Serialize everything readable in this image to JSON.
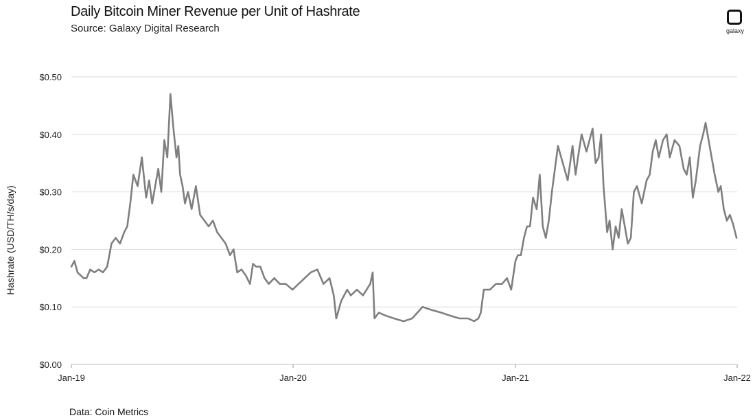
{
  "title": "Daily Bitcoin Miner Revenue per Unit of Hashrate",
  "subtitle": "Source: Galaxy Digital Research",
  "footer": "Data: Coin Metrics",
  "logo_text": "galaxy",
  "colors": {
    "line": "#7f7f7f",
    "grid": "#dcdcdc",
    "axis": "#bdbdbd"
  },
  "chart_data": {
    "type": "line",
    "title": "Daily Bitcoin Miner Revenue per Unit of Hashrate",
    "ylabel": "Hashrate (USD/TH/s/day)",
    "xlabel": "",
    "ylim": [
      0,
      0.5
    ],
    "xlim": [
      "2019-01-01",
      "2022-01-01"
    ],
    "yticks": [
      0,
      0.1,
      0.2,
      0.3,
      0.4,
      0.5
    ],
    "ytick_labels": [
      "$0.00",
      "$0.10",
      "$0.20",
      "$0.30",
      "$0.40",
      "$0.50"
    ],
    "xticks": [
      "2019-01-01",
      "2020-01-01",
      "2021-01-01",
      "2022-01-01"
    ],
    "xtick_labels": [
      "Jan-19",
      "Jan-20",
      "Jan-21",
      "Jan-22"
    ],
    "grid": true,
    "series": [
      {
        "x": [
          "2019-01-01",
          "2019-01-06",
          "2019-01-11",
          "2019-01-16",
          "2019-01-21",
          "2019-01-26",
          "2019-02-01",
          "2019-02-08",
          "2019-02-15",
          "2019-02-22",
          "2019-03-01",
          "2019-03-08",
          "2019-03-15",
          "2019-03-22",
          "2019-03-29",
          "2019-04-03",
          "2019-04-08",
          "2019-04-13",
          "2019-04-20",
          "2019-04-27",
          "2019-05-04",
          "2019-05-09",
          "2019-05-14",
          "2019-05-19",
          "2019-05-24",
          "2019-05-29",
          "2019-06-03",
          "2019-06-08",
          "2019-06-13",
          "2019-06-18",
          "2019-06-23",
          "2019-06-26",
          "2019-06-29",
          "2019-07-03",
          "2019-07-07",
          "2019-07-12",
          "2019-07-18",
          "2019-07-25",
          "2019-08-01",
          "2019-08-08",
          "2019-08-15",
          "2019-08-22",
          "2019-08-29",
          "2019-09-05",
          "2019-09-12",
          "2019-09-19",
          "2019-09-25",
          "2019-10-01",
          "2019-10-08",
          "2019-10-15",
          "2019-10-22",
          "2019-10-27",
          "2019-11-01",
          "2019-11-08",
          "2019-11-15",
          "2019-11-22",
          "2019-12-01",
          "2019-12-10",
          "2019-12-20",
          "2019-12-31",
          "2020-01-10",
          "2020-01-20",
          "2020-01-30",
          "2020-02-10",
          "2020-02-20",
          "2020-03-01",
          "2020-03-08",
          "2020-03-12",
          "2020-03-20",
          "2020-03-30",
          "2020-04-05",
          "2020-04-15",
          "2020-04-25",
          "2020-05-01",
          "2020-05-07",
          "2020-05-11",
          "2020-05-14",
          "2020-05-21",
          "2020-06-01",
          "2020-06-15",
          "2020-07-01",
          "2020-07-15",
          "2020-08-01",
          "2020-08-15",
          "2020-09-01",
          "2020-09-15",
          "2020-10-01",
          "2020-10-15",
          "2020-10-25",
          "2020-11-01",
          "2020-11-05",
          "2020-11-10",
          "2020-11-20",
          "2020-11-30",
          "2020-12-10",
          "2020-12-18",
          "2020-12-25",
          "2021-01-01",
          "2021-01-05",
          "2021-01-10",
          "2021-01-15",
          "2021-01-20",
          "2021-01-25",
          "2021-01-30",
          "2021-02-05",
          "2021-02-10",
          "2021-02-15",
          "2021-02-20",
          "2021-02-25",
          "2021-03-02",
          "2021-03-07",
          "2021-03-12",
          "2021-03-20",
          "2021-03-28",
          "2021-04-05",
          "2021-04-10",
          "2021-04-14",
          "2021-04-20",
          "2021-04-28",
          "2021-05-03",
          "2021-05-08",
          "2021-05-13",
          "2021-05-18",
          "2021-05-22",
          "2021-05-26",
          "2021-06-01",
          "2021-06-05",
          "2021-06-10",
          "2021-06-15",
          "2021-06-20",
          "2021-06-25",
          "2021-06-30",
          "2021-07-05",
          "2021-07-10",
          "2021-07-15",
          "2021-07-20",
          "2021-07-28",
          "2021-08-05",
          "2021-08-10",
          "2021-08-15",
          "2021-08-20",
          "2021-08-25",
          "2021-09-01",
          "2021-09-07",
          "2021-09-12",
          "2021-09-20",
          "2021-09-28",
          "2021-10-05",
          "2021-10-10",
          "2021-10-15",
          "2021-10-20",
          "2021-10-25",
          "2021-11-01",
          "2021-11-06",
          "2021-11-10",
          "2021-11-15",
          "2021-11-20",
          "2021-11-25",
          "2021-12-01",
          "2021-12-05",
          "2021-12-10",
          "2021-12-15",
          "2021-12-20",
          "2021-12-25",
          "2021-12-31"
        ],
        "y": [
          0.17,
          0.18,
          0.16,
          0.155,
          0.15,
          0.15,
          0.165,
          0.16,
          0.165,
          0.16,
          0.17,
          0.21,
          0.22,
          0.21,
          0.23,
          0.24,
          0.28,
          0.33,
          0.31,
          0.36,
          0.29,
          0.32,
          0.28,
          0.31,
          0.34,
          0.3,
          0.39,
          0.36,
          0.47,
          0.41,
          0.36,
          0.38,
          0.33,
          0.31,
          0.28,
          0.3,
          0.27,
          0.31,
          0.26,
          0.25,
          0.24,
          0.25,
          0.23,
          0.22,
          0.21,
          0.19,
          0.2,
          0.16,
          0.165,
          0.155,
          0.14,
          0.175,
          0.17,
          0.17,
          0.15,
          0.14,
          0.15,
          0.14,
          0.14,
          0.13,
          0.14,
          0.15,
          0.16,
          0.165,
          0.14,
          0.15,
          0.12,
          0.08,
          0.11,
          0.13,
          0.12,
          0.13,
          0.12,
          0.13,
          0.14,
          0.16,
          0.08,
          0.09,
          0.085,
          0.08,
          0.075,
          0.08,
          0.1,
          0.095,
          0.09,
          0.085,
          0.08,
          0.08,
          0.075,
          0.08,
          0.09,
          0.13,
          0.13,
          0.14,
          0.14,
          0.15,
          0.13,
          0.18,
          0.19,
          0.19,
          0.22,
          0.24,
          0.24,
          0.29,
          0.27,
          0.33,
          0.24,
          0.22,
          0.25,
          0.3,
          0.34,
          0.38,
          0.35,
          0.32,
          0.38,
          0.33,
          0.36,
          0.4,
          0.37,
          0.39,
          0.41,
          0.35,
          0.36,
          0.4,
          0.31,
          0.23,
          0.25,
          0.2,
          0.24,
          0.22,
          0.27,
          0.24,
          0.21,
          0.22,
          0.3,
          0.31,
          0.28,
          0.32,
          0.33,
          0.37,
          0.39,
          0.36,
          0.39,
          0.4,
          0.36,
          0.39,
          0.38,
          0.34,
          0.33,
          0.36,
          0.29,
          0.32,
          0.38,
          0.4,
          0.42,
          0.39,
          0.36,
          0.33,
          0.3,
          0.31,
          0.27,
          0.25,
          0.26,
          0.245,
          0.22
        ]
      }
    ]
  }
}
